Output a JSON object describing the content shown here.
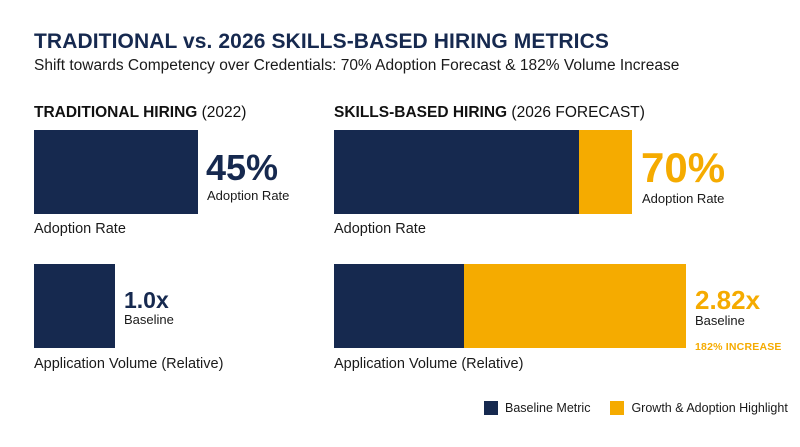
{
  "title": "TRADITIONAL vs. 2026 SKILLS-BASED HIRING METRICS",
  "subtitle": "Shift towards Competency over Credentials: 70% Adoption Forecast & 182% Volume Increase",
  "colors": {
    "baseline": "#16294f",
    "growth": "#f5ab00"
  },
  "chart_data": [
    {
      "type": "bar",
      "panel_title": "TRADITIONAL HIRING",
      "panel_suffix": "(2022)",
      "metric": "Adoption Rate",
      "value": 45,
      "unit": "%",
      "value_label": "45%",
      "value_sub": "Adoption Rate",
      "scale_max": 100
    },
    {
      "type": "bar",
      "panel_title": "SKILLS-BASED HIRING",
      "panel_suffix": "(2026 FORECAST)",
      "metric": "Adoption Rate",
      "value": 70,
      "baseline_value": 45,
      "unit": "%",
      "value_label": "70%",
      "value_sub": "Adoption Rate",
      "scale_max": 100
    },
    {
      "type": "bar",
      "panel_title": "TRADITIONAL HIRING",
      "metric": "Application Volume (Relative)",
      "value": 1.0,
      "value_label": "1.0x",
      "value_sub": "Baseline",
      "scale_max": 5.0
    },
    {
      "type": "bar",
      "panel_title": "SKILLS-BASED HIRING",
      "metric": "Application Volume (Relative)",
      "value": 2.82,
      "baseline_value": 1.0,
      "value_label": "2.82x",
      "value_sub": "Baseline",
      "annotation": "182% INCREASE",
      "scale_max": 3.0
    }
  ],
  "legend": [
    {
      "label": "Baseline Metric",
      "color": "#16294f"
    },
    {
      "label": "Growth & Adoption Highlight",
      "color": "#f5ab00"
    }
  ]
}
